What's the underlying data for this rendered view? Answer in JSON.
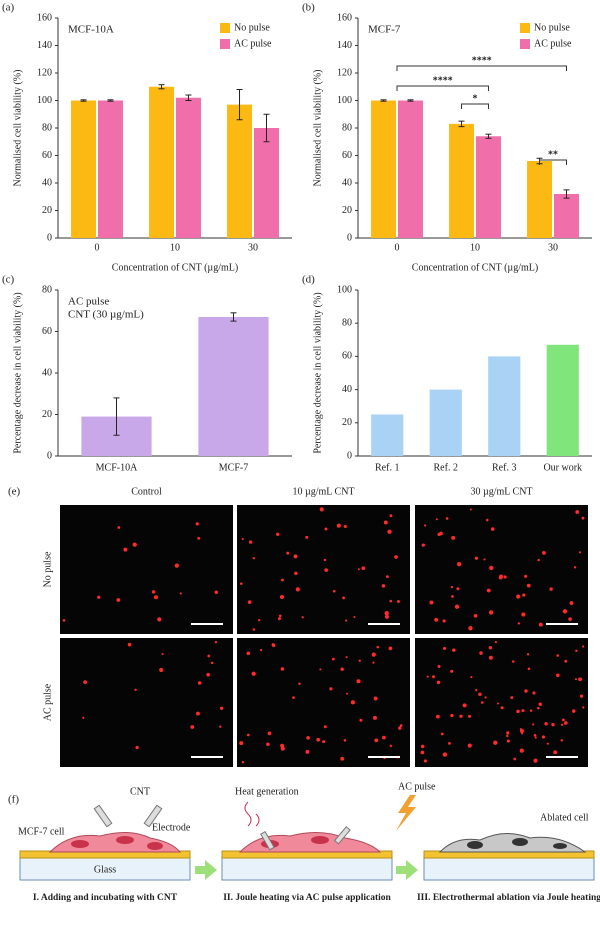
{
  "chart_data": [
    {
      "type": "bar",
      "label": "(a)",
      "annotation": "MCF-10A",
      "x_label": "Concentration of CNT (µg/mL)",
      "y_label": "Normalised cell viability (%)",
      "categories": [
        "0",
        "10",
        "30"
      ],
      "series": [
        {
          "name": "No pulse",
          "color": "#fdb913",
          "values": [
            100,
            110,
            97
          ],
          "errors": [
            0.5,
            1.5,
            11
          ]
        },
        {
          "name": "AC pulse",
          "color": "#f06eaa",
          "values": [
            100,
            102,
            80
          ],
          "errors": [
            0.5,
            2,
            10
          ]
        }
      ],
      "ylim": [
        0,
        160
      ],
      "yticks": [
        0,
        20,
        40,
        60,
        80,
        100,
        120,
        140,
        160
      ],
      "legend": "upper right"
    },
    {
      "type": "bar",
      "label": "(b)",
      "annotation": "MCF-7",
      "x_label": "Concentration of CNT (µg/mL)",
      "y_label": "Normalised cell viability (%)",
      "categories": [
        "0",
        "10",
        "30"
      ],
      "series": [
        {
          "name": "No pulse",
          "color": "#fdb913",
          "values": [
            100,
            83,
            56
          ],
          "errors": [
            0.5,
            2,
            2
          ]
        },
        {
          "name": "AC pulse",
          "color": "#f06eaa",
          "values": [
            100,
            74,
            32
          ],
          "errors": [
            0.5,
            1.5,
            3
          ]
        }
      ],
      "significance": [
        "****",
        "****",
        "*",
        "**"
      ],
      "ylim": [
        0,
        160
      ],
      "yticks": [
        0,
        20,
        40,
        60,
        80,
        100,
        120,
        140,
        160
      ],
      "legend": "upper right"
    },
    {
      "type": "bar",
      "label": "(c)",
      "annotation": [
        "AC pulse",
        "CNT (30 µg/mL)"
      ],
      "y_label": "Percentage decrease in cell viability (%)",
      "categories": [
        "MCF-10A",
        "MCF-7"
      ],
      "values": [
        19,
        67
      ],
      "errors": [
        9,
        2
      ],
      "color": "#c9a8ea",
      "ylim": [
        0,
        80
      ],
      "yticks": [
        0,
        20,
        40,
        60,
        80
      ]
    },
    {
      "type": "bar",
      "label": "(d)",
      "y_label": "Percentage decrease in cell viability (%)",
      "categories": [
        "Ref. 1",
        "Ref. 2",
        "Ref. 3",
        "Our work"
      ],
      "values": [
        25,
        40,
        60,
        67
      ],
      "colors": [
        "#aad2f4",
        "#aad2f4",
        "#aad2f4",
        "#80e57a"
      ],
      "ylim": [
        0,
        100
      ],
      "yticks": [
        0,
        20,
        40,
        60,
        80,
        100
      ]
    }
  ],
  "micrographs": {
    "label": "(e)",
    "columns": [
      "Control",
      "10 µg/mL CNT",
      "30 µg/mL CNT"
    ],
    "rows": [
      "No pulse",
      "AC pulse"
    ]
  },
  "schematic": {
    "label": "(f)",
    "labels": {
      "cnt": "CNT",
      "cell": "MCF-7 cell",
      "electrode": "Electrode",
      "glass": "Glass",
      "heat": "Heat generation",
      "pulse": "AC pulse",
      "ablated": "Ablated cell"
    },
    "steps": [
      "I. Adding and incubating with CNT",
      "II. Joule heating via AC pulse application",
      "III. Electrothermal ablation via Joule heating"
    ]
  }
}
